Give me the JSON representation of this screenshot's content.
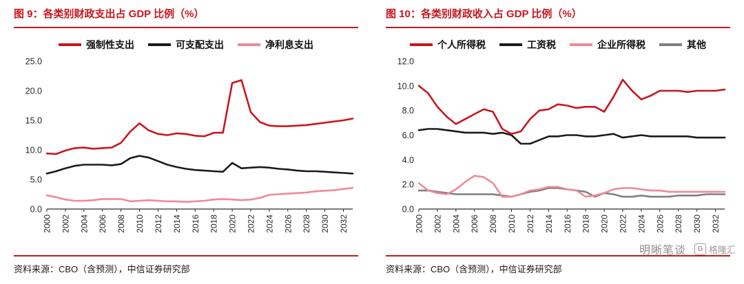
{
  "page": {
    "background": "#ffffff",
    "accent_color": "#c8161d"
  },
  "charts": [
    {
      "title": "图 9：各类别财政支出占 GDP 比例（%）",
      "source": "资料来源：CBO（含预测），中信证券研究部",
      "chart_data": {
        "type": "line",
        "x": [
          2000,
          2001,
          2002,
          2003,
          2004,
          2005,
          2006,
          2007,
          2008,
          2009,
          2010,
          2011,
          2012,
          2013,
          2014,
          2015,
          2016,
          2017,
          2018,
          2019,
          2020,
          2021,
          2022,
          2023,
          2024,
          2025,
          2026,
          2027,
          2028,
          2029,
          2030,
          2031,
          2032,
          2033
        ],
        "xticks": [
          2000,
          2002,
          2004,
          2006,
          2008,
          2010,
          2012,
          2014,
          2016,
          2018,
          2020,
          2022,
          2024,
          2026,
          2028,
          2030,
          2032
        ],
        "ylim": [
          0,
          25
        ],
        "yticks": [
          0,
          5,
          10,
          15,
          20,
          25
        ],
        "grid": false,
        "legend_position": "top",
        "series": [
          {
            "name": "强制性支出",
            "color": "#c8161d",
            "values": [
              9.4,
              9.3,
              9.9,
              10.3,
              10.4,
              10.2,
              10.3,
              10.4,
              11.2,
              13.1,
              14.5,
              13.3,
              12.7,
              12.5,
              12.8,
              12.7,
              12.4,
              12.3,
              12.9,
              12.9,
              21.3,
              21.8,
              16.4,
              14.7,
              14.1,
              14.0,
              14.0,
              14.1,
              14.2,
              14.4,
              14.6,
              14.8,
              15.0,
              15.3
            ]
          },
          {
            "name": "可支配支出",
            "color": "#1a1a1a",
            "values": [
              6.0,
              6.4,
              6.9,
              7.3,
              7.5,
              7.5,
              7.5,
              7.4,
              7.6,
              8.6,
              9.0,
              8.7,
              8.1,
              7.5,
              7.1,
              6.8,
              6.6,
              6.5,
              6.4,
              6.3,
              7.8,
              6.9,
              7.0,
              7.1,
              7.0,
              6.8,
              6.7,
              6.5,
              6.4,
              6.4,
              6.3,
              6.2,
              6.1,
              6.0
            ]
          },
          {
            "name": "净利息支出",
            "color": "#f0889a",
            "values": [
              2.3,
              2.0,
              1.6,
              1.4,
              1.4,
              1.5,
              1.7,
              1.7,
              1.7,
              1.3,
              1.4,
              1.5,
              1.4,
              1.3,
              1.3,
              1.2,
              1.3,
              1.4,
              1.6,
              1.7,
              1.6,
              1.5,
              1.6,
              1.9,
              2.4,
              2.5,
              2.6,
              2.7,
              2.8,
              3.0,
              3.1,
              3.2,
              3.4,
              3.6
            ]
          }
        ]
      }
    },
    {
      "title": "图 10：各类别财政收入占 GDP 比例（%）",
      "source": "资料来源：CBO（含预测），中信证券研究部",
      "chart_data": {
        "type": "line",
        "x": [
          2000,
          2001,
          2002,
          2003,
          2004,
          2005,
          2006,
          2007,
          2008,
          2009,
          2010,
          2011,
          2012,
          2013,
          2014,
          2015,
          2016,
          2017,
          2018,
          2019,
          2020,
          2021,
          2022,
          2023,
          2024,
          2025,
          2026,
          2027,
          2028,
          2029,
          2030,
          2031,
          2032,
          2033
        ],
        "xticks": [
          2000,
          2002,
          2004,
          2006,
          2008,
          2010,
          2012,
          2014,
          2016,
          2018,
          2020,
          2022,
          2024,
          2026,
          2028,
          2030,
          2032
        ],
        "ylim": [
          0,
          12
        ],
        "yticks": [
          0,
          2,
          4,
          6,
          8,
          10,
          12
        ],
        "grid": false,
        "legend_position": "top",
        "series": [
          {
            "name": "个人所得税",
            "color": "#c8161d",
            "values": [
              10.0,
              9.4,
              8.3,
              7.5,
              6.9,
              7.3,
              7.7,
              8.1,
              7.9,
              6.5,
              6.1,
              6.3,
              7.3,
              8.0,
              8.1,
              8.5,
              8.4,
              8.2,
              8.3,
              8.3,
              7.9,
              9.1,
              10.5,
              9.6,
              8.9,
              9.2,
              9.6,
              9.6,
              9.6,
              9.5,
              9.6,
              9.6,
              9.6,
              9.7
            ]
          },
          {
            "name": "工资税",
            "color": "#1a1a1a",
            "values": [
              6.4,
              6.5,
              6.5,
              6.4,
              6.3,
              6.2,
              6.2,
              6.2,
              6.1,
              6.2,
              6.0,
              5.3,
              5.3,
              5.6,
              5.9,
              5.9,
              6.0,
              6.0,
              5.9,
              5.9,
              6.0,
              6.1,
              5.8,
              5.9,
              6.0,
              5.9,
              5.9,
              5.9,
              5.9,
              5.9,
              5.8,
              5.8,
              5.8,
              5.8
            ]
          },
          {
            "name": "企业所得税",
            "color": "#f0889a",
            "values": [
              2.1,
              1.5,
              1.3,
              1.2,
              1.6,
              2.2,
              2.7,
              2.6,
              2.1,
              1.0,
              1.0,
              1.2,
              1.5,
              1.6,
              1.8,
              1.8,
              1.6,
              1.5,
              1.0,
              1.1,
              1.3,
              1.6,
              1.7,
              1.7,
              1.6,
              1.5,
              1.5,
              1.4,
              1.4,
              1.4,
              1.4,
              1.4,
              1.4,
              1.4
            ]
          },
          {
            "name": "其他",
            "color": "#7f7f7f",
            "values": [
              1.5,
              1.5,
              1.4,
              1.3,
              1.2,
              1.2,
              1.2,
              1.2,
              1.2,
              1.1,
              1.0,
              1.2,
              1.4,
              1.5,
              1.7,
              1.7,
              1.6,
              1.5,
              1.4,
              1.0,
              1.3,
              1.2,
              1.0,
              1.0,
              1.1,
              1.0,
              1.0,
              1.0,
              1.1,
              1.1,
              1.1,
              1.2,
              1.2,
              1.2
            ]
          }
        ]
      }
    }
  ],
  "watermark": {
    "name": "明晰笔谈",
    "platform": "格隆汇",
    "logo_glyph": "G"
  }
}
